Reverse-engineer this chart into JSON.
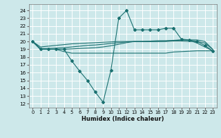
{
  "xlabel": "Humidex (Indice chaleur)",
  "background_color": "#cde8ea",
  "grid_color": "#ffffff",
  "line_color": "#1a7070",
  "xlim": [
    -0.5,
    23.5
  ],
  "ylim": [
    11.5,
    24.8
  ],
  "yticks": [
    12,
    13,
    14,
    15,
    16,
    17,
    18,
    19,
    20,
    21,
    22,
    23,
    24
  ],
  "xticks": [
    0,
    1,
    2,
    3,
    4,
    5,
    6,
    7,
    8,
    9,
    10,
    11,
    12,
    13,
    14,
    15,
    16,
    17,
    18,
    19,
    20,
    21,
    22,
    23
  ],
  "series": {
    "line_main": {
      "x": [
        0,
        1,
        2,
        3,
        4,
        5,
        6,
        7,
        8,
        9,
        10,
        11,
        12,
        13,
        14,
        15,
        16,
        17,
        18,
        19,
        20,
        21,
        22,
        23
      ],
      "y": [
        20.0,
        19.0,
        19.0,
        19.0,
        19.0,
        17.5,
        16.2,
        15.0,
        13.5,
        12.2,
        16.3,
        23.0,
        24.0,
        21.5,
        21.5,
        21.5,
        21.5,
        21.7,
        21.7,
        20.3,
        20.2,
        20.0,
        19.5,
        18.8
      ],
      "marker": "D",
      "markersize": 2.0
    },
    "line_top": {
      "x": [
        0,
        1,
        2,
        3,
        4,
        5,
        6,
        7,
        8,
        9,
        10,
        11,
        12,
        13,
        14,
        15,
        16,
        17,
        18,
        19,
        20,
        21,
        22,
        23
      ],
      "y": [
        20.0,
        19.3,
        19.4,
        19.5,
        19.6,
        19.7,
        19.75,
        19.8,
        19.85,
        19.9,
        19.95,
        20.0,
        20.0,
        20.0,
        20.0,
        20.0,
        20.0,
        20.05,
        20.1,
        20.2,
        20.2,
        20.2,
        20.0,
        19.0
      ]
    },
    "line_mid1": {
      "x": [
        0,
        1,
        2,
        3,
        4,
        5,
        6,
        7,
        8,
        9,
        10,
        11,
        12,
        13,
        14,
        15,
        16,
        17,
        18,
        19,
        20,
        21,
        22,
        23
      ],
      "y": [
        20.0,
        19.1,
        19.1,
        19.15,
        19.2,
        19.3,
        19.4,
        19.5,
        19.55,
        19.65,
        19.75,
        19.85,
        19.95,
        20.0,
        20.0,
        20.0,
        20.0,
        20.0,
        20.05,
        20.05,
        20.0,
        20.0,
        19.8,
        19.0
      ]
    },
    "line_mid2": {
      "x": [
        0,
        1,
        2,
        3,
        4,
        5,
        6,
        7,
        8,
        9,
        10,
        11,
        12,
        13,
        14,
        15,
        16,
        17,
        18,
        19,
        20,
        21,
        22,
        23
      ],
      "y": [
        20.0,
        19.0,
        19.0,
        19.0,
        19.0,
        19.05,
        19.1,
        19.15,
        19.2,
        19.3,
        19.45,
        19.65,
        19.85,
        20.0,
        20.0,
        20.05,
        20.1,
        20.1,
        20.15,
        20.2,
        20.15,
        19.8,
        19.3,
        18.8
      ]
    },
    "line_bot": {
      "x": [
        0,
        1,
        2,
        3,
        4,
        5,
        6,
        7,
        8,
        9,
        10,
        11,
        12,
        13,
        14,
        15,
        16,
        17,
        18,
        19,
        20,
        21,
        22,
        23
      ],
      "y": [
        20.0,
        19.0,
        19.0,
        19.0,
        18.7,
        18.5,
        18.5,
        18.5,
        18.5,
        18.5,
        18.5,
        18.5,
        18.5,
        18.5,
        18.5,
        18.5,
        18.5,
        18.5,
        18.65,
        18.7,
        18.75,
        18.8,
        18.8,
        18.8
      ]
    }
  }
}
